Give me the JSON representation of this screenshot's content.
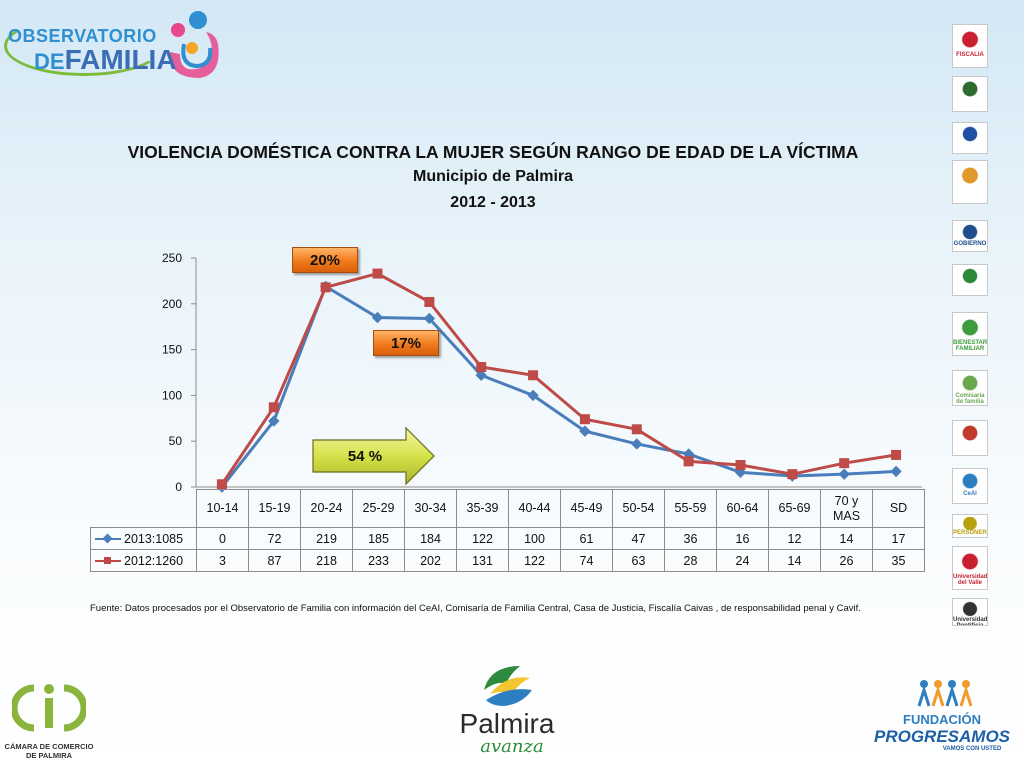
{
  "header": {
    "logo_line1": "OBSERVATORIO",
    "logo_line2_prefix": "DE",
    "logo_line2": "FAMILIA"
  },
  "title": {
    "line1": "VIOLENCIA DOMÉSTICA CONTRA LA MUJER SEGÚN RANGO DE EDAD DE LA VÍCTIMA",
    "line2": "Municipio de Palmira",
    "line3": "2012 - 2013"
  },
  "callouts": {
    "pct_20": "20%",
    "pct_17": "17%",
    "pct_54": "54 %"
  },
  "chart_data": {
    "type": "line",
    "categories": [
      "10-14",
      "15-19",
      "20-24",
      "25-29",
      "30-34",
      "35-39",
      "40-44",
      "45-49",
      "50-54",
      "55-59",
      "60-64",
      "65-69",
      "70 y MAS",
      "SD"
    ],
    "series": [
      {
        "name": "2013:1085",
        "color": "#4a7ebb",
        "marker": "diamond",
        "values": [
          0,
          72,
          219,
          185,
          184,
          122,
          100,
          61,
          47,
          36,
          16,
          12,
          14,
          17
        ]
      },
      {
        "name": "2012:1260",
        "color": "#be4b48",
        "marker": "square",
        "values": [
          3,
          87,
          218,
          233,
          202,
          131,
          122,
          74,
          63,
          28,
          24,
          14,
          26,
          35
        ]
      }
    ],
    "title": "",
    "xlabel": "",
    "ylabel": "",
    "ylim": [
      0,
      250
    ],
    "yticks": [
      0,
      50,
      100,
      150,
      200,
      250
    ],
    "grid": false,
    "legend": "data-table"
  },
  "source": "Fuente: Datos procesados por el Observatorio de  Familia con información del CeAI, Comisaría de Familia Central, Casa de Justicia, Fiscalía Caivas , de responsabilidad penal y Cavif.",
  "right_logos": [
    {
      "name": "fiscalia-logo",
      "label": "FISCALIA",
      "color": "#c8202f"
    },
    {
      "name": "policia-logo",
      "label": "",
      "color": "#2e6b2e"
    },
    {
      "name": "ministerio-logo",
      "label": "",
      "color": "#1e4fa0"
    },
    {
      "name": "bienestar-hands-logo",
      "label": "",
      "color": "#e0982a"
    },
    {
      "name": "gobierno-logo",
      "label": "GOBIERNO",
      "color": "#1f4e8c"
    },
    {
      "name": "green-seal-logo",
      "label": "",
      "color": "#2a8a3a"
    },
    {
      "name": "bienestar-familiar-logo",
      "label": "BIENESTAR FAMILIAR",
      "color": "#3d9a3d"
    },
    {
      "name": "comisaria-logo",
      "label": "Comisaría de familia",
      "color": "#6aa84f"
    },
    {
      "name": "casa-justicia-logo",
      "label": "",
      "color": "#c0392b"
    },
    {
      "name": "ceai-logo",
      "label": "CeAI",
      "color": "#2d7fc2"
    },
    {
      "name": "personeria-logo",
      "label": "PERSONERIA",
      "color": "#b7a010"
    },
    {
      "name": "univalle-logo",
      "label": "Universidad del Valle",
      "color": "#c8202f"
    },
    {
      "name": "upb-logo",
      "label": "Universidad Pontificia Bolivariana",
      "color": "#333333"
    }
  ],
  "footer": {
    "camara": "CÁMARA DE COMERCIO DE PALMIRA",
    "palmira_word": "Palmira",
    "palmira_sub": "avanza",
    "prog_line1": "FUNDACIÓN",
    "prog_line2": "PROGRESAMOS",
    "prog_line3": "VAMOS CON USTED"
  }
}
